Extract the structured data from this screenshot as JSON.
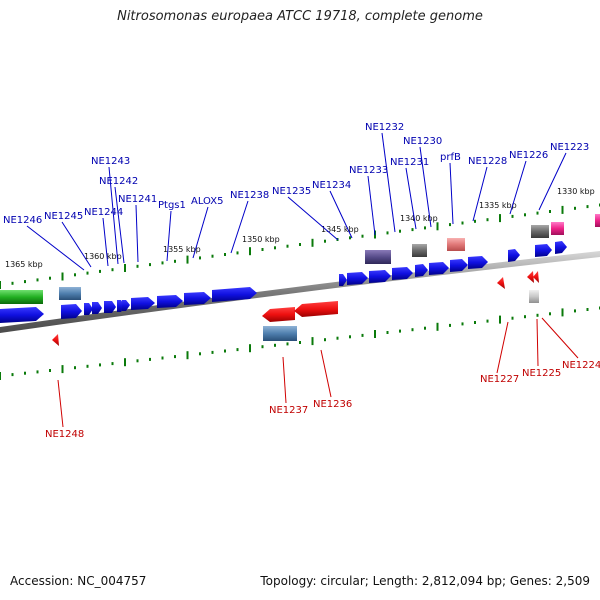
{
  "title": "Nitrosomonas europaea ATCC 19718, complete genome",
  "footer": {
    "accession": "Accession: NC_004757",
    "topology": "Topology: circular; Length: 2,812,094 bp; Genes: 2,509"
  },
  "scale_labels": [
    "1365 kbp",
    "1360 kbp",
    "1355 kbp",
    "1350 kbp",
    "1345 kbp",
    "1340 kbp",
    "1335 kbp",
    "1330 kbp"
  ],
  "genes_top": [
    "NE1246",
    "NE1245",
    "NE1244",
    "NE1243",
    "NE1242",
    "NE1241",
    "Ptgs1",
    "ALOX5",
    "NE1238",
    "NE1235",
    "NE1234",
    "NE1233",
    "NE1232",
    "NE1231",
    "NE1230",
    "prfB",
    "NE1228",
    "NE1226",
    "NE1223"
  ],
  "genes_bottom": [
    "NE1248",
    "NE1237",
    "NE1236",
    "NE1227",
    "NE1225",
    "NE1224"
  ],
  "colors": {
    "forward_gene": "#1010e0",
    "reverse_gene": "#ee1010",
    "backbone": "#8a8a8a",
    "tick": "#0a7a0a",
    "label_blue": "#0000b0",
    "label_red": "#c00000"
  }
}
